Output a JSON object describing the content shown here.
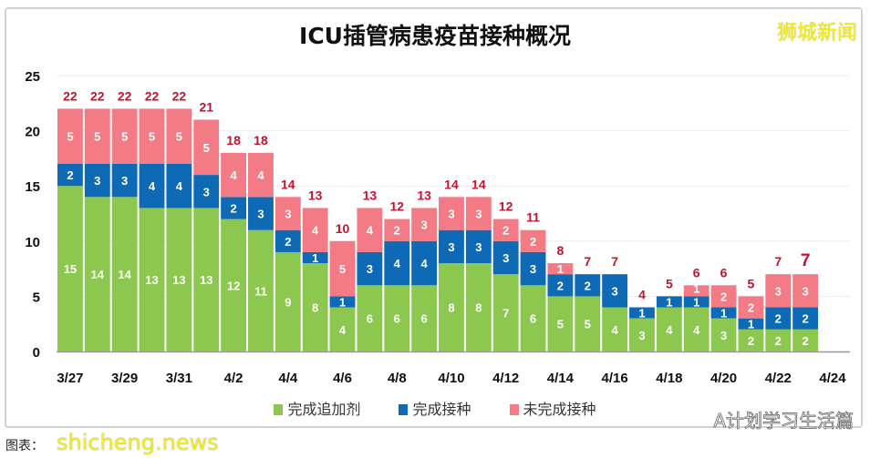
{
  "chart_data": {
    "type": "stacked-bar",
    "title": "ICU插管病患疫苗接种概况",
    "categories": [
      "3/27",
      "3/28",
      "3/29",
      "3/30",
      "3/31",
      "4/1",
      "4/2",
      "4/3",
      "4/4",
      "4/5",
      "4/6",
      "4/7",
      "4/8",
      "4/9",
      "4/10",
      "4/11",
      "4/12",
      "4/13",
      "4/14",
      "4/15",
      "4/16",
      "4/17",
      "4/18",
      "4/19",
      "4/20",
      "4/21",
      "4/22",
      "4/23"
    ],
    "x_tick_labels": [
      "3/27",
      "3/29",
      "3/31",
      "4/2",
      "4/4",
      "4/6",
      "4/8",
      "4/10",
      "4/12",
      "4/14",
      "4/16",
      "4/18",
      "4/20",
      "4/22",
      "4/24"
    ],
    "series": [
      {
        "name": "完成追加剂",
        "color": "#8cc84f",
        "values": [
          15,
          14,
          14,
          13,
          13,
          13,
          12,
          11,
          9,
          8,
          4,
          6,
          6,
          6,
          8,
          8,
          7,
          6,
          5,
          5,
          4,
          3,
          4,
          4,
          3,
          2,
          2,
          2
        ]
      },
      {
        "name": "完成接种",
        "color": "#0f6ab6",
        "values": [
          2,
          3,
          3,
          4,
          4,
          3,
          2,
          3,
          2,
          1,
          1,
          3,
          4,
          4,
          3,
          3,
          3,
          3,
          2,
          2,
          3,
          1,
          1,
          1,
          1,
          1,
          2,
          2
        ]
      },
      {
        "name": "未完成接种",
        "color": "#f37b85",
        "values": [
          5,
          5,
          5,
          5,
          5,
          5,
          4,
          4,
          3,
          4,
          5,
          4,
          2,
          3,
          3,
          3,
          2,
          2,
          1,
          0,
          0,
          0,
          0,
          1,
          2,
          2,
          3,
          3
        ]
      }
    ],
    "totals": [
      22,
      22,
      22,
      22,
      22,
      21,
      18,
      18,
      14,
      13,
      10,
      13,
      12,
      13,
      14,
      14,
      12,
      11,
      8,
      7,
      7,
      4,
      5,
      6,
      6,
      5,
      7,
      7
    ],
    "ylim": [
      0,
      25
    ],
    "y_ticks": [
      0,
      5,
      10,
      15,
      20,
      25
    ],
    "grid": true,
    "legend": "bottom",
    "total_label_color": "#c8102e"
  },
  "watermarks": {
    "brand": "狮城新闻",
    "site": "shicheng.news",
    "wechat": "A计划学习生活篇"
  },
  "footer": "图表："
}
